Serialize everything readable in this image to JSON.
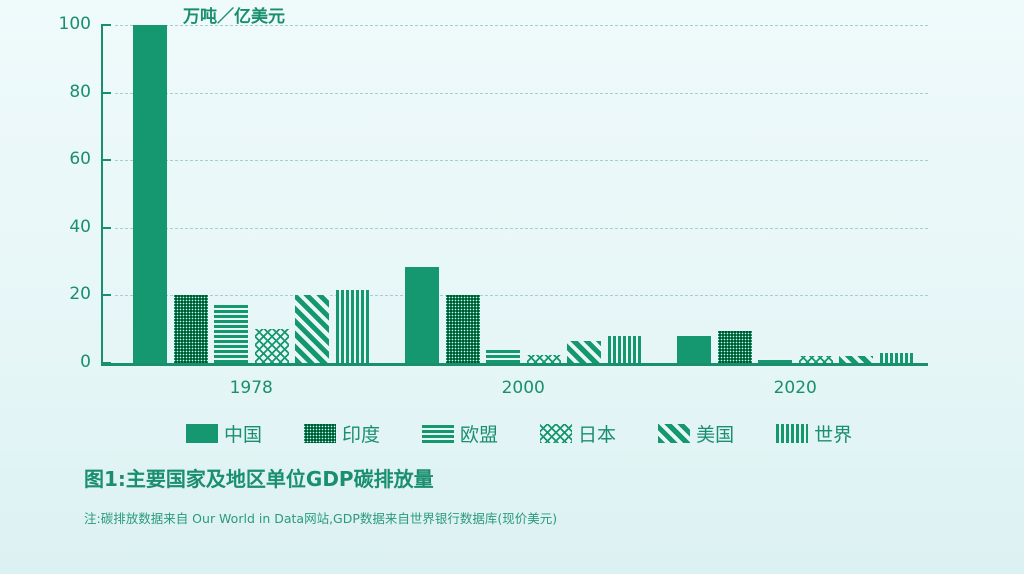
{
  "chart_data": {
    "type": "bar",
    "title": "图1:主要国家及地区单位GDP碳排放量",
    "unit_label": "万吨／亿美元",
    "xlabel": "",
    "ylabel": "万吨／亿美元",
    "ylim": [
      0,
      100
    ],
    "yticks": [
      0,
      20,
      40,
      60,
      80,
      100
    ],
    "grid": "horizontal dashed",
    "legend_position": "bottom",
    "categories": [
      "1978",
      "2000",
      "2020"
    ],
    "series": [
      {
        "name": "中国",
        "pattern": "solid",
        "values": [
          100,
          28.5,
          8
        ]
      },
      {
        "name": "印度",
        "pattern": "dots",
        "values": [
          20,
          20,
          9.5
        ]
      },
      {
        "name": "欧盟",
        "pattern": "hlines",
        "values": [
          17.5,
          4,
          1.5
        ]
      },
      {
        "name": "日本",
        "pattern": "crosshatch",
        "values": [
          10,
          2.5,
          2
        ]
      },
      {
        "name": "美国",
        "pattern": "diagonal",
        "values": [
          20,
          6.5,
          2
        ]
      },
      {
        "name": "世界",
        "pattern": "vlines",
        "values": [
          21.5,
          8,
          3
        ]
      }
    ],
    "note": "注:碳排放数据来自 Our World in Data网站,GDP数据来自世界银行数据库(现价美元)"
  },
  "colors": {
    "accent": "#15976f",
    "text": "#1a8f6e",
    "grid": "#a6cfc6",
    "background": "#eaf8f9"
  }
}
